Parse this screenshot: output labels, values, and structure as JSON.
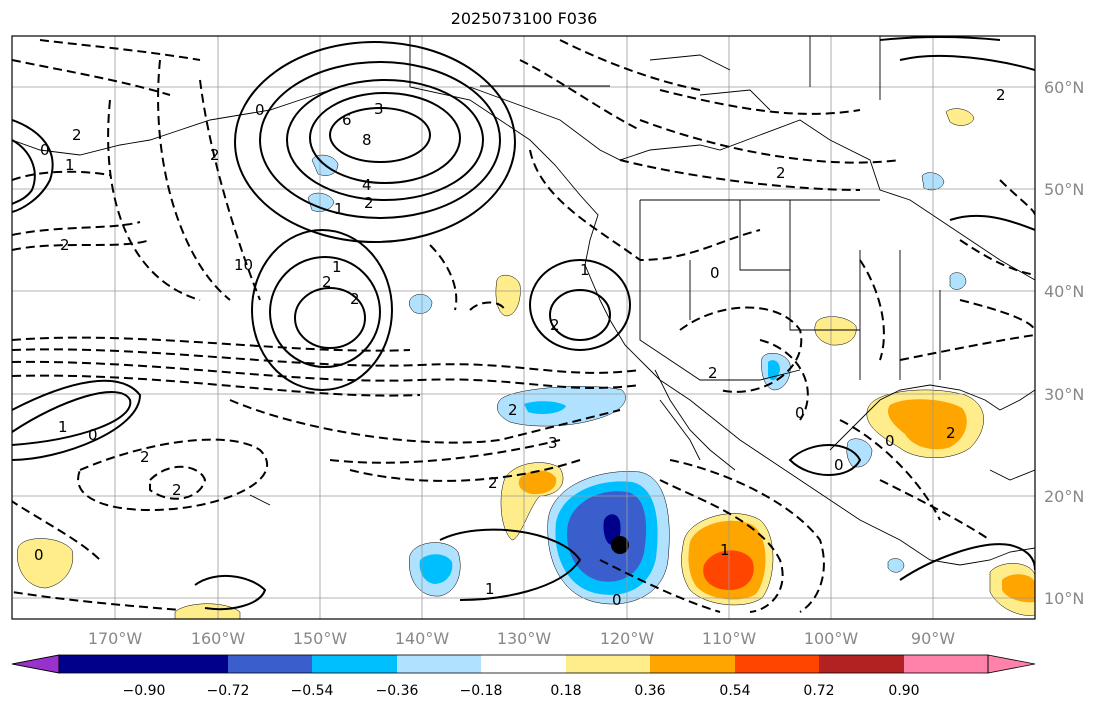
{
  "title": "2025073100 F036",
  "lon_labels": [
    "170°W",
    "160°W",
    "150°W",
    "140°W",
    "130°W",
    "120°W",
    "110°W",
    "100°W",
    "90°W"
  ],
  "lat_labels": [
    "60°N",
    "50°N",
    "40°N",
    "30°N",
    "20°N",
    "10°N"
  ],
  "colorbar": {
    "colors": [
      "#9932cc",
      "#00008b",
      "#3a5fcd",
      "#00bfff",
      "#b0e2ff",
      "#ffffff",
      "#ffec8b",
      "#ffa500",
      "#ff4500",
      "#b22222",
      "#ff82ab"
    ],
    "tick_labels": [
      "−0.90",
      "−0.72",
      "−0.54",
      "−0.36",
      "−0.18",
      "0.18",
      "0.36",
      "0.54",
      "0.72",
      "0.90"
    ]
  },
  "contour_labels": [
    "2",
    "0",
    "1",
    "2",
    "0",
    "6",
    "8",
    "3",
    "4",
    "2",
    "1",
    "2",
    "10",
    "1",
    "2",
    "2",
    "1",
    "2",
    "0",
    "2",
    "3",
    "2",
    "0",
    "1",
    "2",
    "2",
    "0",
    "2",
    "2",
    "1",
    "1",
    "0",
    "0",
    "0",
    "2",
    "2",
    "0"
  ],
  "storm_marker": "storm-center"
}
